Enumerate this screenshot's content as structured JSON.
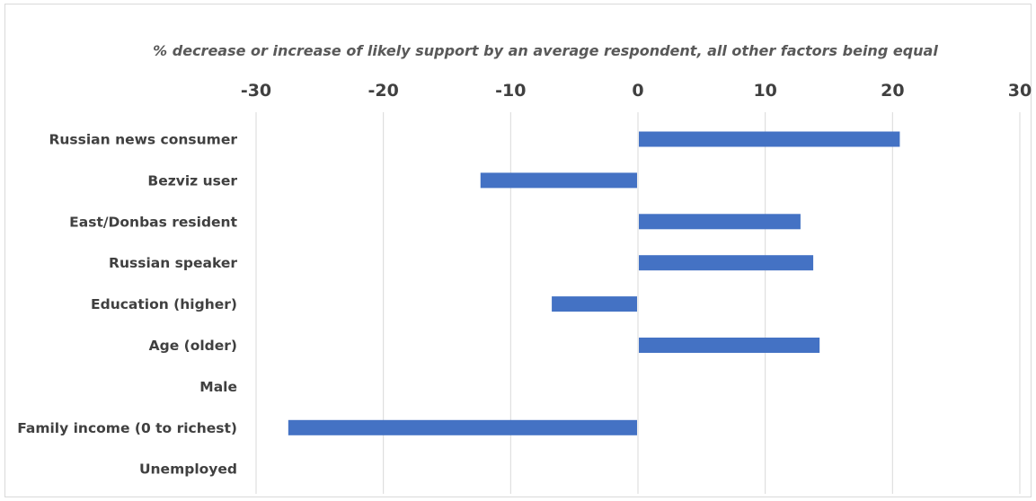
{
  "chart_data": {
    "type": "bar",
    "orientation": "horizontal",
    "title": "% decrease or increase of likely support by an average respondent, all other factors being equal",
    "categories": [
      "Russian news consumer",
      "Bezviz user",
      "East/Donbas resident",
      "Russian speaker",
      "Education (higher)",
      "Age (older)",
      "Male",
      "Family income (0 to richest)",
      "Unemployed"
    ],
    "values": [
      20.5,
      -12.3,
      12.7,
      13.7,
      -6.7,
      14.2,
      0,
      -27.4,
      0
    ],
    "xlim": [
      -30,
      30
    ],
    "xticks": [
      -30,
      -20,
      -10,
      0,
      10,
      20,
      30
    ],
    "x_axis_position": "top",
    "grid": true,
    "bar_color": "#4472c4"
  }
}
